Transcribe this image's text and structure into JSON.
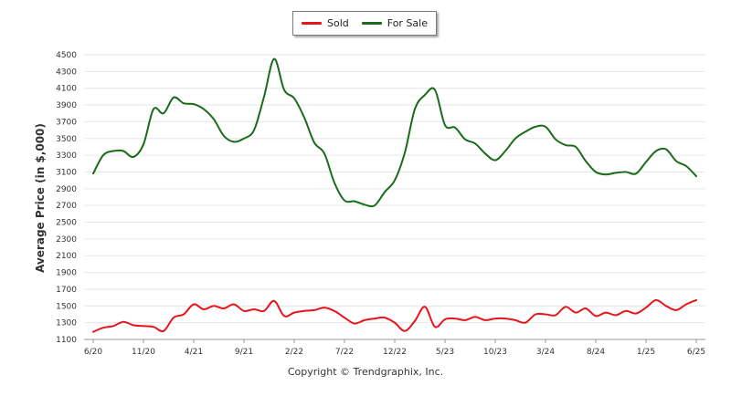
{
  "legend": {
    "sold_label": "Sold",
    "for_sale_label": "For Sale"
  },
  "footer": {
    "copyright": "Copyright © Trendgraphix, Inc."
  },
  "colors": {
    "sold": "#e8141c",
    "for_sale": "#1a6b1a",
    "grid": "#e6e6e6",
    "axis": "#999999"
  },
  "chart_data": {
    "type": "line",
    "ylabel": "Average Price (in $,000)",
    "xlabel": "",
    "ylim": [
      1100,
      4500
    ],
    "y_ticks": [
      1100,
      1300,
      1500,
      1700,
      1900,
      2100,
      2300,
      2500,
      2700,
      2900,
      3100,
      3300,
      3500,
      3700,
      3900,
      4100,
      4300,
      4500
    ],
    "x_tick_labels": [
      "6/20",
      "11/20",
      "4/21",
      "9/21",
      "2/22",
      "7/22",
      "12/22",
      "5/23",
      "10/23",
      "3/24",
      "8/24",
      "1/25",
      "6/25"
    ],
    "grid": true,
    "legend_position": "top-center",
    "x": [
      "6/20",
      "7/20",
      "8/20",
      "9/20",
      "10/20",
      "11/20",
      "12/20",
      "1/21",
      "2/21",
      "3/21",
      "4/21",
      "5/21",
      "6/21",
      "7/21",
      "8/21",
      "9/21",
      "10/21",
      "11/21",
      "12/21",
      "1/22",
      "2/22",
      "3/22",
      "4/22",
      "5/22",
      "6/22",
      "7/22",
      "8/22",
      "9/22",
      "10/22",
      "11/22",
      "12/22",
      "1/23",
      "2/23",
      "3/23",
      "4/23",
      "5/23",
      "6/23",
      "7/23",
      "8/23",
      "9/23",
      "10/23",
      "11/23",
      "12/23",
      "1/24",
      "2/24",
      "3/24",
      "4/24",
      "5/24",
      "6/24",
      "7/24",
      "8/24",
      "9/24",
      "10/24",
      "11/24",
      "12/24",
      "1/25",
      "2/25",
      "3/25",
      "4/25",
      "5/25",
      "6/25"
    ],
    "series": [
      {
        "name": "Sold",
        "values": [
          1190,
          1240,
          1260,
          1310,
          1270,
          1260,
          1250,
          1200,
          1360,
          1400,
          1520,
          1460,
          1500,
          1470,
          1520,
          1440,
          1460,
          1440,
          1560,
          1380,
          1420,
          1440,
          1450,
          1480,
          1440,
          1360,
          1290,
          1330,
          1350,
          1360,
          1300,
          1200,
          1320,
          1490,
          1250,
          1340,
          1350,
          1330,
          1370,
          1330,
          1350,
          1350,
          1330,
          1300,
          1400,
          1400,
          1390,
          1490,
          1420,
          1470,
          1380,
          1420,
          1390,
          1440,
          1410,
          1480,
          1570,
          1500,
          1450,
          1520,
          1570
        ]
      },
      {
        "name": "For Sale",
        "values": [
          3080,
          3300,
          3350,
          3350,
          3280,
          3430,
          3850,
          3800,
          3990,
          3920,
          3910,
          3850,
          3730,
          3530,
          3460,
          3500,
          3600,
          4000,
          4450,
          4080,
          3980,
          3750,
          3450,
          3320,
          2970,
          2760,
          2750,
          2710,
          2700,
          2860,
          3000,
          3330,
          3850,
          4020,
          4080,
          3660,
          3630,
          3490,
          3440,
          3320,
          3240,
          3350,
          3500,
          3580,
          3640,
          3640,
          3490,
          3420,
          3400,
          3230,
          3100,
          3070,
          3090,
          3100,
          3080,
          3220,
          3350,
          3370,
          3230,
          3170,
          3050
        ]
      }
    ]
  }
}
